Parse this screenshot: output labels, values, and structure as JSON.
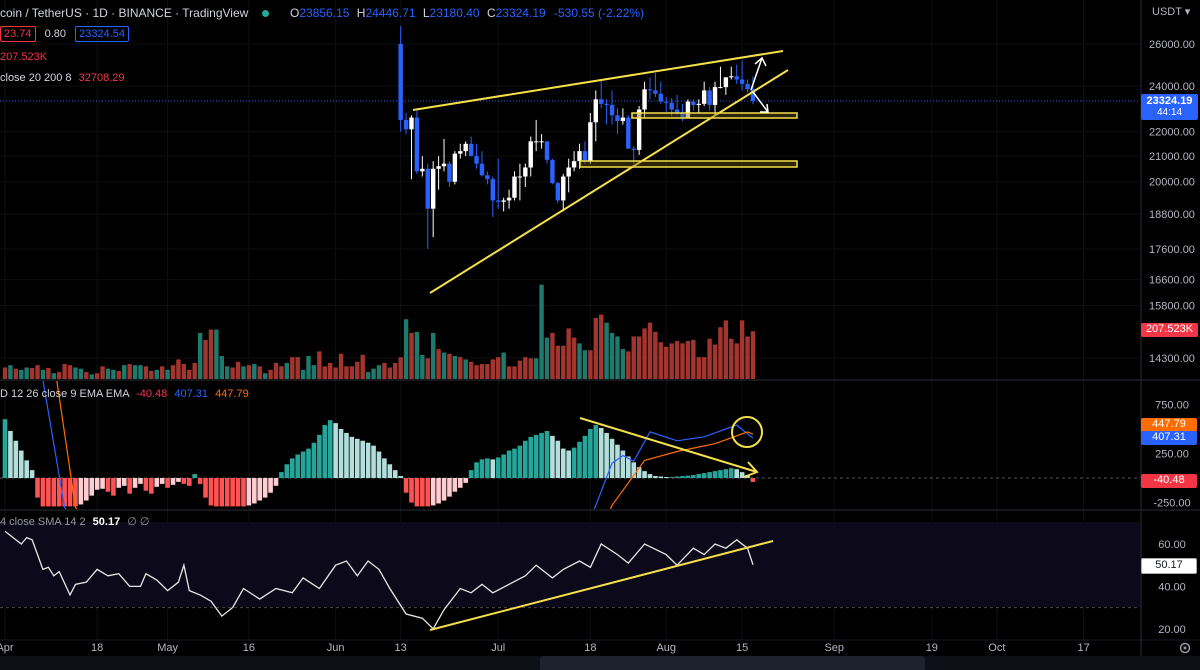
{
  "header": {
    "symbol": "coin / TetherUS · 1D · BINANCE · TradingView",
    "open_label": "O",
    "open": "23856.15",
    "high_label": "H",
    "high": "24446.71",
    "low_label": "L",
    "low": "23180.40",
    "close_label": "C",
    "close": "23324.19",
    "change": "-530.55 (-2.22%)",
    "bid": "23.74",
    "spread": "0.80",
    "ask": "23324.54",
    "volume": "207.523K",
    "indicator_name": "close 20 200 8",
    "indicator_value": "32708.29",
    "macd_name": "D 12 26 close 9 EMA EMA",
    "macd_hist": "-40.48",
    "macd_line": "407.31",
    "macd_signal": "447.79",
    "rsi_name": "4 close SMA 14 2",
    "rsi_value": "50.17",
    "rsi_flags": "∅ ∅"
  },
  "price_scale": {
    "currency": "USDT ▾",
    "current_price": "23324.19",
    "countdown": "44:14",
    "volume_badge": "207.523K",
    "macd_badges": {
      "signal": "447.79",
      "macd": "407.31",
      "hist": "-40.48"
    },
    "rsi_badge": "50.17"
  },
  "colors": {
    "up_candle": "#ffffff",
    "down_candle": "#2962ff",
    "vol_up": "#1f7a6e",
    "vol_down": "#a3352f",
    "hist_up_rising": "#26a69a",
    "hist_up_falling": "#b2dfdb",
    "hist_down_falling": "#ff5252",
    "hist_down_rising": "#ffcdd2",
    "macd": "#2962ff",
    "signal": "#ff6d00",
    "rsi": "#e6e6e6",
    "drawing": "#f5e04a"
  },
  "chart_data": [
    {
      "type": "candlestick",
      "scale": "log",
      "y_ticks": [
        26000,
        24000,
        22000,
        21000,
        20000,
        18800,
        17600,
        16600,
        15800,
        14300
      ],
      "x_ticks": [
        "Apr",
        "18",
        "May",
        "16",
        "Jun",
        "13",
        "Jul",
        "18",
        "Aug",
        "15",
        "Sep",
        "19",
        "Oct",
        "17"
      ],
      "candles": [
        [
          "Jun 13",
          26000,
          26900,
          22000,
          22500
        ],
        [
          "Jun 14",
          22500,
          22800,
          21900,
          22100
        ],
        [
          "Jun 15",
          22100,
          22700,
          20100,
          22600
        ],
        [
          "Jun 16",
          22600,
          22900,
          20300,
          20400
        ],
        [
          "Jun 17",
          20400,
          21000,
          20200,
          20500
        ],
        [
          "Jun 18",
          20500,
          20700,
          17600,
          19000
        ],
        [
          "Jun 19",
          19000,
          20800,
          18000,
          20500
        ],
        [
          "Jun 20",
          20500,
          21000,
          19700,
          20600
        ],
        [
          "Jun 21",
          20600,
          21700,
          20400,
          20700
        ],
        [
          "Jun 22",
          20700,
          20800,
          19800,
          20000
        ],
        [
          "Jun 23",
          20000,
          21200,
          19900,
          21100
        ],
        [
          "Jun 24",
          21100,
          21500,
          20900,
          21200
        ],
        [
          "Jun 25",
          21200,
          21600,
          21000,
          21500
        ],
        [
          "Jun 26",
          21500,
          21800,
          21000,
          21000
        ],
        [
          "Jun 27",
          21000,
          21500,
          20500,
          20700
        ],
        [
          "Jun 28",
          20700,
          21200,
          20200,
          20250
        ],
        [
          "Jun 29",
          20250,
          20400,
          19900,
          20100
        ],
        [
          "Jun 30",
          20100,
          20200,
          18700,
          19300
        ],
        [
          "Jul 1",
          19300,
          20900,
          19000,
          19250
        ],
        [
          "Jul 2",
          19250,
          19400,
          18900,
          19300
        ],
        [
          "Jul 3",
          19300,
          19700,
          19000,
          19400
        ],
        [
          "Jul 4",
          19400,
          20400,
          19300,
          20200
        ],
        [
          "Jul 5",
          20200,
          20700,
          19300,
          20200
        ],
        [
          "Jul 6",
          20200,
          20700,
          19800,
          20550
        ],
        [
          "Jul 7",
          20550,
          21800,
          20200,
          21600
        ],
        [
          "Jul 8",
          21600,
          22500,
          21200,
          21600
        ],
        [
          "Jul 9",
          21600,
          21900,
          21300,
          21600
        ],
        [
          "Jul 10",
          21600,
          21600,
          20700,
          20850
        ],
        [
          "Jul 11",
          20850,
          20900,
          19900,
          19950
        ],
        [
          "Jul 12",
          19950,
          20000,
          19200,
          19300
        ],
        [
          "Jul 13",
          19300,
          20300,
          18900,
          20200
        ],
        [
          "Jul 14",
          20200,
          20900,
          19600,
          20550
        ],
        [
          "Jul 15",
          20550,
          21200,
          20400,
          20800
        ],
        [
          "Jul 16",
          20800,
          21500,
          20500,
          21200
        ],
        [
          "Jul 17",
          21200,
          21600,
          20700,
          20800
        ],
        [
          "Jul 18",
          20800,
          22800,
          20700,
          22400
        ],
        [
          "Jul 19",
          22400,
          23800,
          21600,
          23400
        ],
        [
          "Jul 20",
          23400,
          24300,
          23000,
          23200
        ],
        [
          "Jul 21",
          23200,
          23400,
          22300,
          23150
        ],
        [
          "Jul 22",
          23150,
          23800,
          22300,
          22700
        ],
        [
          "Jul 23",
          22700,
          23000,
          21900,
          22450
        ],
        [
          "Jul 24",
          22450,
          23000,
          22300,
          22600
        ],
        [
          "Jul 25",
          22600,
          22700,
          21300,
          21300
        ],
        [
          "Jul 26",
          21300,
          21400,
          20700,
          21250
        ],
        [
          "Jul 27",
          21250,
          23100,
          21050,
          22950
        ],
        [
          "Jul 28",
          22950,
          24200,
          22600,
          23850
        ],
        [
          "Jul 29",
          23850,
          24400,
          23400,
          23800
        ],
        [
          "Jul 30",
          23800,
          24600,
          23500,
          23650
        ],
        [
          "Jul 31",
          23650,
          24200,
          23200,
          23300
        ],
        [
          "Aug 1",
          23300,
          23500,
          22850,
          23250
        ],
        [
          "Aug 2",
          23250,
          23450,
          22650,
          22950
        ],
        [
          "Aug 3",
          22950,
          23600,
          22700,
          22800
        ],
        [
          "Aug 4",
          22800,
          23200,
          22450,
          22600
        ],
        [
          "Aug 5",
          22600,
          23400,
          22600,
          23300
        ],
        [
          "Aug 6",
          23300,
          23400,
          22900,
          23150
        ],
        [
          "Aug 7",
          23150,
          23400,
          22800,
          23200
        ],
        [
          "Aug 8",
          23200,
          24200,
          23100,
          23800
        ],
        [
          "Aug 9",
          23800,
          23950,
          22900,
          23150
        ],
        [
          "Aug 10",
          23150,
          24200,
          22700,
          23950
        ],
        [
          "Aug 11",
          23950,
          24900,
          23900,
          23950
        ],
        [
          "Aug 12",
          23950,
          24400,
          23600,
          24400
        ],
        [
          "Aug 13",
          24400,
          24900,
          24300,
          24450
        ],
        [
          "Aug 14",
          24450,
          25000,
          24100,
          24300
        ],
        [
          "Aug 15",
          24300,
          25200,
          23800,
          24100
        ],
        [
          "Aug 16",
          24100,
          24300,
          23700,
          23856
        ],
        [
          "Aug 17",
          23856.15,
          24446.71,
          23180.4,
          23324.19
        ]
      ]
    },
    {
      "type": "bar",
      "series_name": "Volume (K)",
      "start_date": "Apr 1",
      "values": [
        50,
        60,
        45,
        40,
        50,
        48,
        60,
        40,
        48,
        25,
        30,
        65,
        60,
        50,
        45,
        30,
        20,
        25,
        55,
        45,
        40,
        35,
        60,
        65,
        60,
        60,
        55,
        35,
        40,
        55,
        40,
        60,
        85,
        65,
        40,
        70,
        200,
        170,
        215,
        215,
        100,
        55,
        50,
        75,
        55,
        60,
        65,
        55,
        25,
        40,
        70,
        55,
        70,
        95,
        95,
        40,
        100,
        60,
        120,
        55,
        70,
        50,
        110,
        55,
        55,
        75,
        105,
        30,
        45,
        60,
        70,
        50,
        70,
        95,
        260,
        200,
        205,
        105,
        90,
        200,
        130,
        115,
        110,
        100,
        95,
        85,
        75,
        60,
        65,
        65,
        85,
        95,
        115,
        55,
        55,
        80,
        95,
        90,
        90,
        410,
        180,
        200,
        145,
        145,
        220,
        180,
        155,
        125,
        125,
        265,
        280,
        245,
        200,
        185,
        130,
        120,
        185,
        185,
        220,
        245,
        205,
        160,
        140,
        155,
        165,
        155,
        165,
        170,
        95,
        95,
        175,
        150,
        225,
        255,
        175,
        155,
        255,
        185,
        207.523
      ],
      "direction": "duduuddudu ddduududduu duduuddudu dddddudduu uddudududd dudduuuddd dddddduuud ddduduudu dudududdd dddudddddu uuddddduud dduuuudded"
    },
    {
      "type": "bar+line",
      "y_ticks": [
        750,
        250,
        -250
      ],
      "start_date": "Apr 1",
      "histogram": [
        600,
        480,
        380,
        280,
        180,
        80,
        -200,
        -290,
        -290,
        -290,
        -290,
        -290,
        -290,
        -290,
        -270,
        -230,
        -180,
        -120,
        -110,
        -140,
        -180,
        -100,
        -80,
        -160,
        -100,
        -60,
        -130,
        -160,
        -90,
        -60,
        -100,
        -70,
        -40,
        -60,
        -80,
        40,
        -60,
        -200,
        -280,
        -290,
        -290,
        -290,
        -290,
        -290,
        -290,
        -280,
        -260,
        -230,
        -200,
        -150,
        -80,
        60,
        140,
        200,
        240,
        270,
        300,
        360,
        440,
        540,
        590,
        560,
        500,
        460,
        420,
        400,
        380,
        360,
        330,
        270,
        200,
        140,
        80,
        20,
        -150,
        -250,
        -290,
        -290,
        -290,
        -280,
        -260,
        -230,
        -190,
        -140,
        -100,
        -50,
        80,
        160,
        190,
        200,
        190,
        210,
        240,
        280,
        300,
        330,
        380,
        420,
        440,
        460,
        480,
        430,
        380,
        300,
        280,
        310,
        370,
        430,
        500,
        540,
        510,
        460,
        400,
        340,
        280,
        220,
        160,
        110,
        70,
        40,
        20,
        15,
        10,
        10,
        15,
        20,
        25,
        30,
        40,
        50,
        60,
        70,
        80,
        90,
        100,
        90,
        60,
        30,
        -40
      ],
      "macd_line": [
        [
          "Apr 1",
          1500
        ],
        [
          "Apr 8",
          1000
        ],
        [
          "Apr 12",
          -300
        ],
        [
          "Apr 20",
          -900
        ],
        [
          "May 10",
          -1200
        ],
        [
          "May 20",
          -1300
        ],
        [
          "Jun 13",
          -1600
        ],
        [
          "Jun 20",
          -2000
        ],
        [
          "Jul 1",
          -1500
        ],
        [
          "Jul 15",
          -800
        ],
        [
          "Jul 19",
          -280
        ],
        [
          "Jul 22",
          150
        ],
        [
          "Jul 24",
          230
        ],
        [
          "Jul 26",
          170
        ],
        [
          "Jul 29",
          470
        ],
        [
          "Aug 3",
          380
        ],
        [
          "Aug 8",
          420
        ],
        [
          "Aug 14",
          540
        ],
        [
          "Aug 17",
          407.31
        ]
      ],
      "signal_line": [
        [
          "Apr 1",
          1600
        ],
        [
          "Apr 10",
          1200
        ],
        [
          "Apr 14",
          -300
        ],
        [
          "Apr 20",
          -700
        ],
        [
          "May 20",
          -1100
        ],
        [
          "Jun 20",
          -1500
        ],
        [
          "Jul 10",
          -1200
        ],
        [
          "Jul 19",
          -700
        ],
        [
          "Jul 22",
          -280
        ],
        [
          "Jul 28",
          180
        ],
        [
          "Aug 3",
          270
        ],
        [
          "Aug 10",
          350
        ],
        [
          "Aug 16",
          470
        ],
        [
          "Aug 17",
          447.79
        ]
      ]
    },
    {
      "type": "line",
      "y_ticks": [
        60,
        40,
        20
      ],
      "bands": [
        70,
        50,
        30
      ],
      "points": [
        [
          "Apr 1",
          66
        ],
        [
          "Apr 3",
          62
        ],
        [
          "Apr 4",
          60
        ],
        [
          "Apr 5",
          63
        ],
        [
          "Apr 6",
          62
        ],
        [
          "Apr 8",
          48
        ],
        [
          "Apr 9",
          49
        ],
        [
          "Apr 10",
          45
        ],
        [
          "Apr 11",
          47
        ],
        [
          "Apr 13",
          36
        ],
        [
          "Apr 14",
          41
        ],
        [
          "Apr 16",
          42
        ],
        [
          "Apr 18",
          48
        ],
        [
          "Apr 20",
          45
        ],
        [
          "Apr 22",
          46
        ],
        [
          "Apr 24",
          40
        ],
        [
          "Apr 26",
          40
        ],
        [
          "Apr 27",
          46
        ],
        [
          "Apr 29",
          43
        ],
        [
          "May 1",
          38
        ],
        [
          "May 3",
          42
        ],
        [
          "May 4",
          50
        ],
        [
          "May 5",
          38
        ],
        [
          "May 7",
          36
        ],
        [
          "May 9",
          33
        ],
        [
          "May 11",
          26
        ],
        [
          "May 13",
          30
        ],
        [
          "May 15",
          39
        ],
        [
          "May 18",
          34
        ],
        [
          "May 21",
          39
        ],
        [
          "May 24",
          37
        ],
        [
          "May 26",
          44
        ],
        [
          "May 29",
          39
        ],
        [
          "Jun 1",
          50
        ],
        [
          "Jun 3",
          52
        ],
        [
          "Jun 5",
          45
        ],
        [
          "Jun 7",
          52
        ],
        [
          "Jun 9",
          48
        ],
        [
          "Jun 11",
          39
        ],
        [
          "Jun 14",
          27
        ],
        [
          "Jun 17",
          25
        ],
        [
          "Jun 19",
          20
        ],
        [
          "Jun 21",
          29
        ],
        [
          "Jun 24",
          39
        ],
        [
          "Jun 26",
          37
        ],
        [
          "Jun 28",
          41
        ],
        [
          "Jun 30",
          37
        ],
        [
          "Jul 3",
          41
        ],
        [
          "Jul 6",
          45
        ],
        [
          "Jul 8",
          50
        ],
        [
          "Jul 11",
          44
        ],
        [
          "Jul 13",
          48
        ],
        [
          "Jul 16",
          52
        ],
        [
          "Jul 18",
          49
        ],
        [
          "Jul 20",
          60
        ],
        [
          "Jul 23",
          55
        ],
        [
          "Jul 25",
          51
        ],
        [
          "Jul 28",
          60
        ],
        [
          "Aug 1",
          55
        ],
        [
          "Aug 3",
          50
        ],
        [
          "Aug 6",
          58
        ],
        [
          "Aug 8",
          55
        ],
        [
          "Aug 10",
          60
        ],
        [
          "Aug 12",
          58
        ],
        [
          "Aug 14",
          62
        ],
        [
          "Aug 16",
          58
        ],
        [
          "Aug 17",
          50.17
        ]
      ]
    }
  ]
}
